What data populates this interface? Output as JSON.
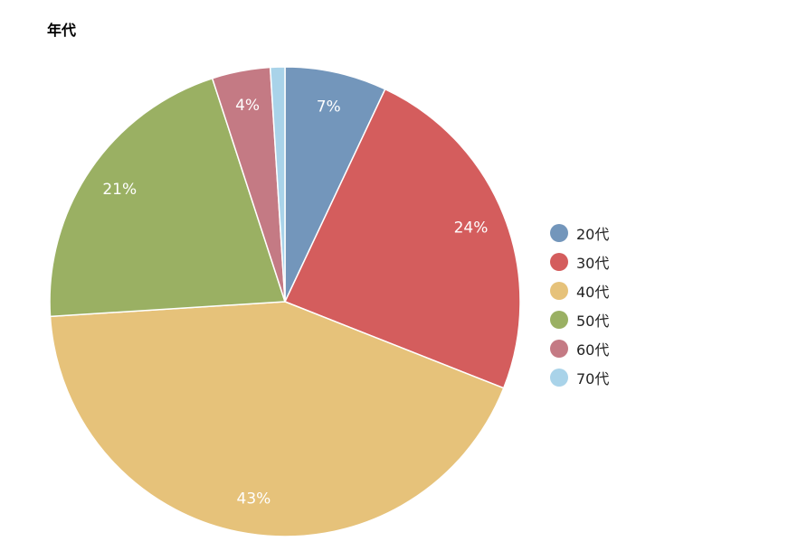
{
  "chart_data": {
    "type": "pie",
    "title": "年代",
    "categories": [
      "20代",
      "30代",
      "40代",
      "50代",
      "60代",
      "70代"
    ],
    "values": [
      7,
      24,
      43,
      21,
      4,
      1
    ],
    "labels": [
      "7%",
      "24%",
      "43%",
      "21%",
      "4%",
      ""
    ],
    "colors": [
      "#7396bb",
      "#d45d5d",
      "#e6c27a",
      "#9ab063",
      "#c47a84",
      "#a9d3e9"
    ],
    "legend_position": "right"
  }
}
